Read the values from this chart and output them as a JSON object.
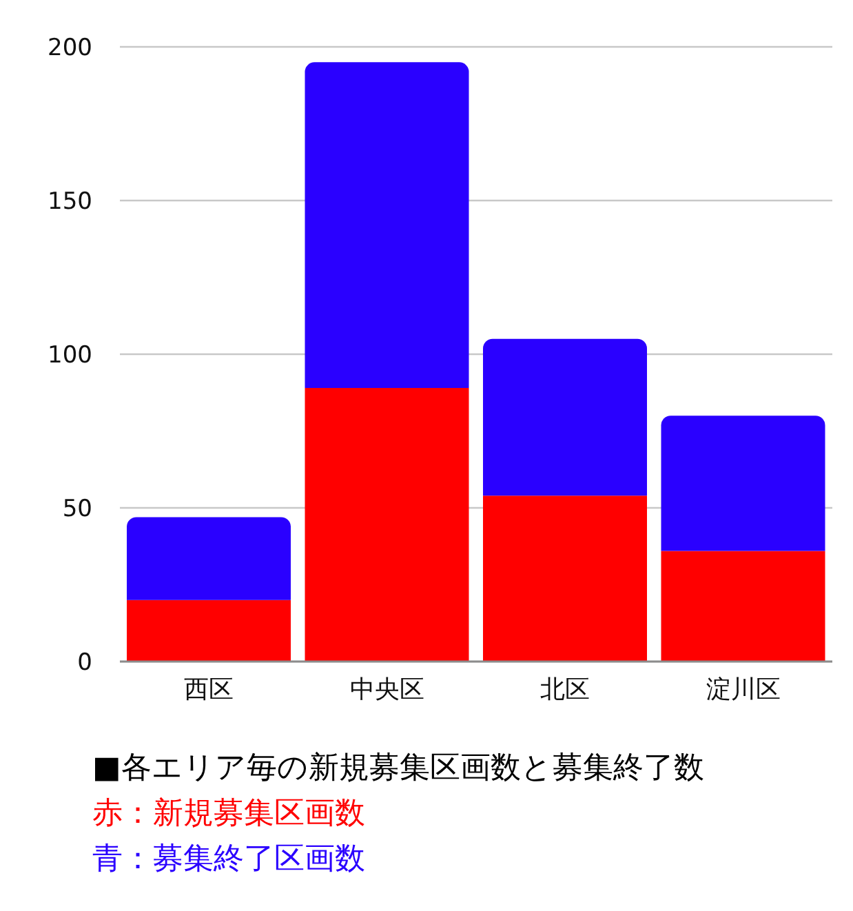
{
  "chart_data": {
    "type": "bar",
    "title": "■各エリア毎の新規募集区画数と募集終了数",
    "categories": [
      "西区",
      "中央区",
      "北区",
      "淀川区"
    ],
    "stacked": true,
    "series": [
      {
        "name": "赤：新規募集区画数",
        "color": "#ff0000",
        "values": [
          20,
          89,
          54,
          36
        ]
      },
      {
        "name": "青：募集終了区画数",
        "color": "#2a00ff",
        "values": [
          27,
          106,
          51,
          44
        ]
      }
    ],
    "ylim": [
      0,
      200
    ],
    "yticks": [
      0,
      50,
      100,
      150,
      200
    ],
    "grid": "y",
    "legend": "bottom"
  }
}
